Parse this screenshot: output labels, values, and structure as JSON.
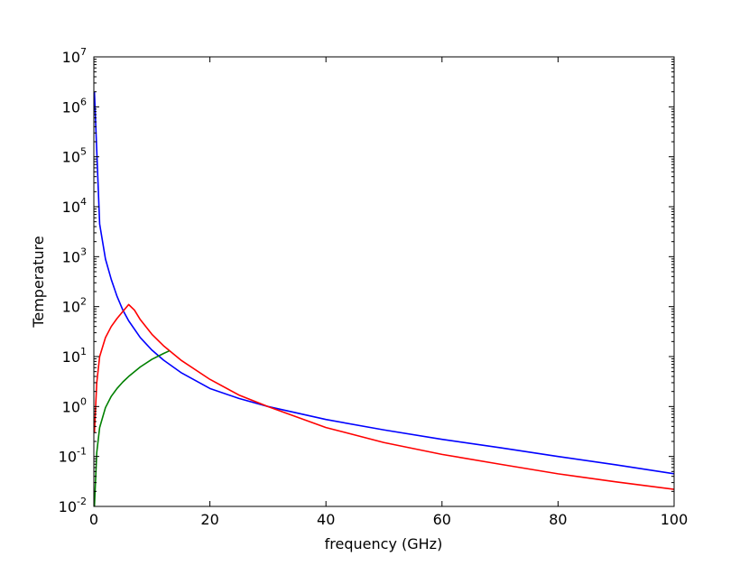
{
  "chart_data": {
    "type": "line",
    "xlabel": "frequency (GHz)",
    "ylabel": "Temperature",
    "xlim": [
      0,
      100
    ],
    "ylim": [
      0.01,
      10000000
    ],
    "yscale": "log",
    "grid": false,
    "legend": "none",
    "x_ticks": [
      0,
      20,
      40,
      60,
      80,
      100
    ],
    "x_tick_labels": [
      "0",
      "20",
      "40",
      "60",
      "80",
      "100"
    ],
    "y_ticks": [
      {
        "value": 0.01,
        "base": "10",
        "exp": "-2"
      },
      {
        "value": 0.1,
        "base": "10",
        "exp": "-1"
      },
      {
        "value": 1,
        "base": "10",
        "exp": "0"
      },
      {
        "value": 10,
        "base": "10",
        "exp": "1"
      },
      {
        "value": 100,
        "base": "10",
        "exp": "2"
      },
      {
        "value": 1000,
        "base": "10",
        "exp": "3"
      },
      {
        "value": 10000,
        "base": "10",
        "exp": "4"
      },
      {
        "value": 100000,
        "base": "10",
        "exp": "5"
      },
      {
        "value": 1000000,
        "base": "10",
        "exp": "6"
      },
      {
        "value": 10000000,
        "base": "10",
        "exp": "7"
      }
    ],
    "series": [
      {
        "color": "#0000ff",
        "x": [
          0.1,
          1,
          2,
          3,
          4,
          5,
          6,
          8,
          10,
          12,
          15,
          20,
          25,
          30,
          40,
          50,
          60,
          70,
          80,
          90,
          100
        ],
        "y": [
          2000000,
          4500,
          900,
          350,
          160,
          85,
          52,
          24,
          13.5,
          8.5,
          4.8,
          2.3,
          1.45,
          1.0,
          0.55,
          0.34,
          0.22,
          0.15,
          0.1,
          0.068,
          0.045
        ]
      },
      {
        "color": "#ff0000",
        "x": [
          0.1,
          0.5,
          1,
          2,
          3,
          4,
          5,
          6,
          7,
          8,
          10,
          12,
          15,
          20,
          25,
          30,
          40,
          50,
          60,
          70,
          80,
          90,
          100
        ],
        "y": [
          0.3,
          3,
          10,
          24,
          40,
          58,
          80,
          110,
          85,
          55,
          28,
          16.5,
          8.5,
          3.5,
          1.7,
          1.0,
          0.38,
          0.19,
          0.11,
          0.07,
          0.045,
          0.031,
          0.022
        ]
      },
      {
        "color": "#008000",
        "x": [
          0.1,
          0.5,
          1,
          2,
          3,
          4,
          5,
          6,
          8,
          10,
          12,
          13
        ],
        "y": [
          0.01,
          0.12,
          0.38,
          0.95,
          1.6,
          2.3,
          3.1,
          4.0,
          6.2,
          8.8,
          11.5,
          13
        ]
      }
    ]
  }
}
